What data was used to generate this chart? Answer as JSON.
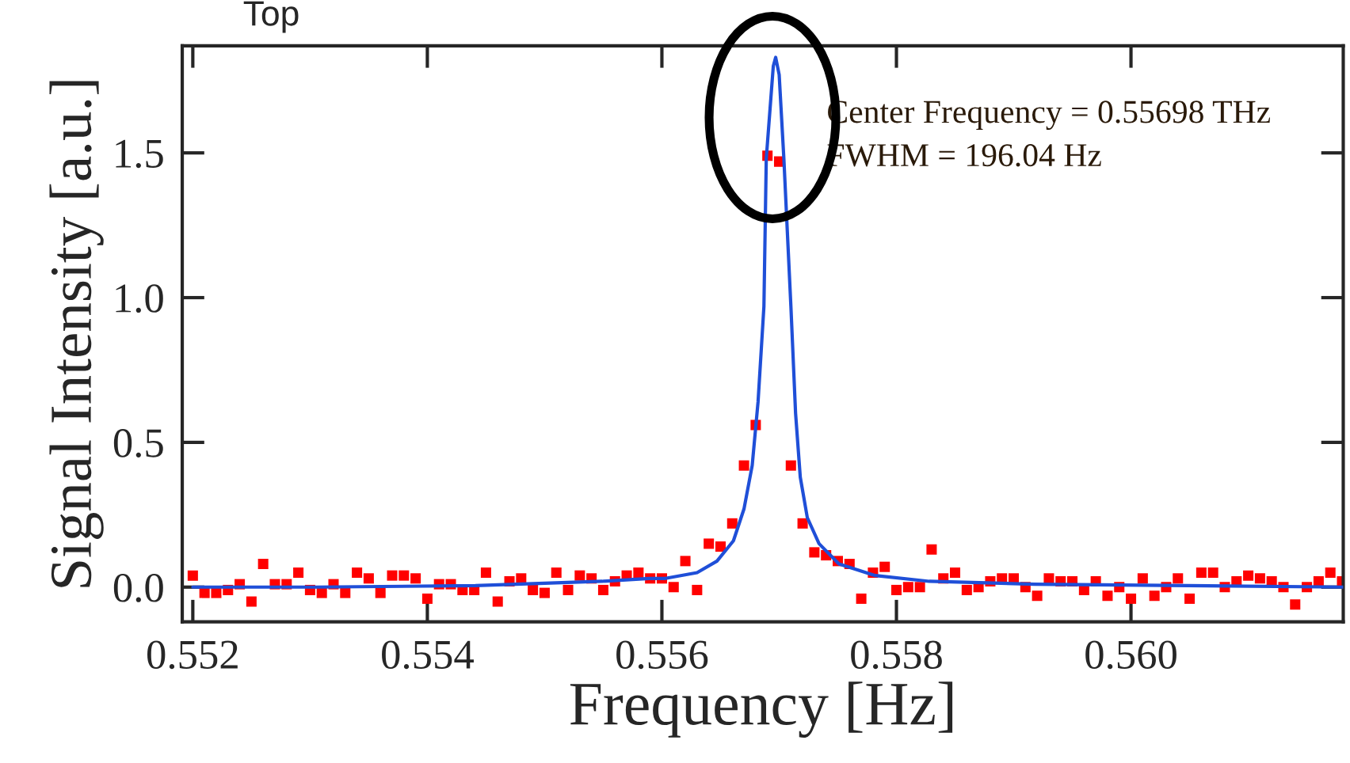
{
  "chart_data": {
    "type": "scatter",
    "xlabel": "Frequency [Hz]",
    "ylabel": "Signal Intensity [a.u.]",
    "annotations": [
      "Top",
      "Center Frequency = 0.55698 THz",
      "FWHM = 196.04 Hz"
    ],
    "x": [
      0.552,
      0.5521,
      0.5522,
      0.5523,
      0.5524,
      0.5525,
      0.5526,
      0.5527,
      0.5528,
      0.5529,
      0.553,
      0.5531,
      0.5532,
      0.5533,
      0.5534,
      0.5535,
      0.5536,
      0.5537,
      0.5538,
      0.5539,
      0.554,
      0.5541,
      0.5542,
      0.5543,
      0.5544,
      0.5545,
      0.5546,
      0.5547,
      0.5548,
      0.5549,
      0.555,
      0.5551,
      0.5552,
      0.5553,
      0.5554,
      0.5555,
      0.5556,
      0.5557,
      0.5558,
      0.5559,
      0.556,
      0.5561,
      0.5562,
      0.5563,
      0.5564,
      0.5565,
      0.5566,
      0.5567,
      0.5568,
      0.5569,
      0.557,
      0.5571,
      0.5572,
      0.5573,
      0.5574,
      0.5575,
      0.5576,
      0.5577,
      0.5578,
      0.5579,
      0.558,
      0.5581,
      0.5582,
      0.5583,
      0.5584,
      0.5585,
      0.5586,
      0.5587,
      0.5588,
      0.5589,
      0.559,
      0.5591,
      0.5592,
      0.5593,
      0.5594,
      0.5595,
      0.5596,
      0.5597,
      0.5598,
      0.5599,
      0.56,
      0.5601,
      0.5602,
      0.5603,
      0.5604,
      0.5605,
      0.5606,
      0.5607,
      0.5608,
      0.5609,
      0.561,
      0.5611,
      0.5612,
      0.5613,
      0.5614,
      0.5615,
      0.5616,
      0.5617,
      0.5618
    ],
    "series": [
      {
        "color": "#ff0000",
        "marker": "square",
        "values": [
          0.04,
          -0.02,
          -0.02,
          -0.01,
          0.01,
          -0.05,
          0.08,
          0.01,
          0.01,
          0.05,
          -0.01,
          -0.02,
          0.01,
          -0.02,
          0.05,
          0.03,
          -0.02,
          0.04,
          0.04,
          0.03,
          -0.04,
          0.01,
          0.01,
          -0.01,
          -0.01,
          0.05,
          -0.05,
          0.02,
          0.03,
          -0.01,
          -0.02,
          0.05,
          -0.01,
          0.04,
          0.03,
          -0.01,
          0.02,
          0.04,
          0.05,
          0.03,
          0.03,
          0.0,
          0.09,
          -0.01,
          0.15,
          0.14,
          0.22,
          0.42,
          0.56,
          1.49,
          1.47,
          0.42,
          0.22,
          0.12,
          0.11,
          0.09,
          0.08,
          -0.04,
          0.05,
          0.07,
          -0.01,
          0.0,
          0.0,
          0.13,
          0.03,
          0.05,
          -0.01,
          0.0,
          0.02,
          0.03,
          0.03,
          0.0,
          -0.03,
          0.03,
          0.02,
          0.02,
          -0.01,
          0.02,
          -0.03,
          0.0,
          -0.04,
          0.03,
          -0.03,
          0.0,
          0.03,
          -0.04,
          0.05,
          0.05,
          0.0,
          0.02,
          0.04,
          0.03,
          0.02,
          0.0,
          -0.06,
          0.0,
          0.02,
          0.05,
          0.02
        ]
      },
      {
        "type": "line",
        "color": "#1f4fd8",
        "marker": "none",
        "line_style": "solid",
        "x": [
          0.552,
          0.55305,
          0.55441,
          0.55549,
          0.55589,
          0.55603,
          0.5563,
          0.55647,
          0.55661,
          0.5567,
          0.55677,
          0.55682,
          0.55687,
          0.55689,
          0.55695,
          0.55697,
          0.557,
          0.55704,
          0.5571,
          0.55714,
          0.55718,
          0.55724,
          0.55734,
          0.55751,
          0.55782,
          0.55828,
          0.55918,
          0.56181
        ],
        "values": [
          0.0,
          0.0,
          0.005,
          0.02,
          0.03,
          0.03,
          0.05,
          0.09,
          0.16,
          0.27,
          0.42,
          0.64,
          0.97,
          1.48,
          1.8,
          1.83,
          1.77,
          1.48,
          0.97,
          0.6,
          0.38,
          0.24,
          0.15,
          0.08,
          0.04,
          0.02,
          0.01,
          0.0
        ]
      }
    ],
    "xlim": [
      0.55191,
      0.56181
    ],
    "ylim": [
      -0.12,
      1.87
    ],
    "xticks": [
      {
        "value": 0.552,
        "label": "0.552"
      },
      {
        "value": 0.554,
        "label": "0.554"
      },
      {
        "value": 0.556,
        "label": "0.556"
      },
      {
        "value": 0.558,
        "label": "0.558"
      },
      {
        "value": 0.56,
        "label": "0.560"
      }
    ],
    "yticks": [
      {
        "value": 0,
        "label": "0.0"
      },
      {
        "value": 0.5,
        "label": "0.5"
      },
      {
        "value": 1,
        "label": "1.0"
      },
      {
        "value": 1.5,
        "label": "1.5"
      }
    ],
    "grid": false,
    "legend": false
  }
}
